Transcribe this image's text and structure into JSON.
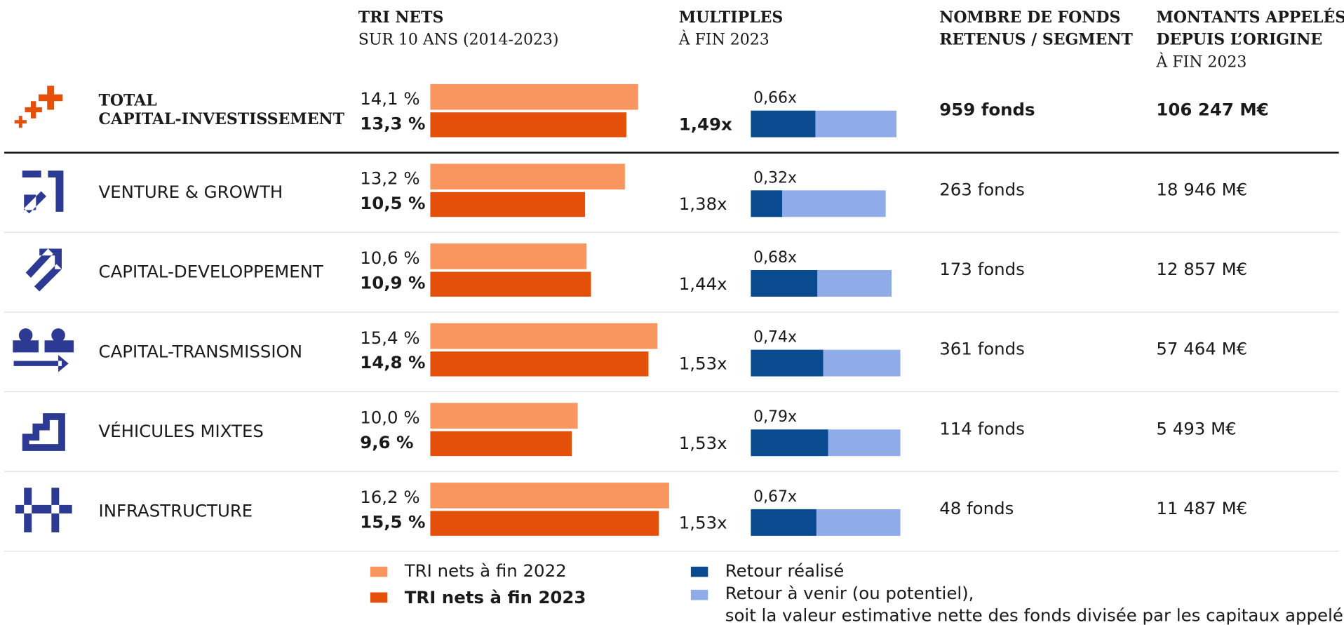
{
  "header": {
    "tri": {
      "title": "TRI NETS",
      "subtitle": "SUR 10 ANS (2014-2023)"
    },
    "multiples": {
      "title": "MULTIPLES",
      "subtitle": "À FIN 2023"
    },
    "funds": {
      "title_lines": [
        "NOMBRE DE FONDS",
        "RETENUS / SEGMENT"
      ]
    },
    "amounts": {
      "title_lines": [
        "MONTANTS APPELÉS",
        "DEPUIS L’ORIGINE"
      ],
      "subtitle": "À FIN 2023"
    }
  },
  "rows": [
    {
      "name_lines": [
        "TOTAL",
        "CAPITAL-INVESTISSEMENT"
      ],
      "tri_2022": {
        "value": 14.1,
        "label": "14,1 %"
      },
      "tri_2023": {
        "value": 13.3,
        "label": "13,3 %"
      },
      "multiple": {
        "value": 1.49,
        "label": "1,49x"
      },
      "realized": {
        "value": 0.66,
        "label": "0,66x"
      },
      "funds": "959 fonds",
      "amount": "106 247 M€"
    },
    {
      "name_lines": [
        "VENTURE & GROWTH"
      ],
      "tri_2022": {
        "value": 13.2,
        "label": "13,2 %"
      },
      "tri_2023": {
        "value": 10.5,
        "label": "10,5 %"
      },
      "multiple": {
        "value": 1.38,
        "label": "1,38x"
      },
      "realized": {
        "value": 0.32,
        "label": "0,32x"
      },
      "funds": "263 fonds",
      "amount": "18 946 M€"
    },
    {
      "name_lines": [
        "CAPITAL-DEVELOPPEMENT"
      ],
      "tri_2022": {
        "value": 10.6,
        "label": "10,6 %"
      },
      "tri_2023": {
        "value": 10.9,
        "label": "10,9 %"
      },
      "multiple": {
        "value": 1.44,
        "label": "1,44x"
      },
      "realized": {
        "value": 0.68,
        "label": "0,68x"
      },
      "funds": "173 fonds",
      "amount": "12 857 M€"
    },
    {
      "name_lines": [
        "CAPITAL-TRANSMISSION"
      ],
      "tri_2022": {
        "value": 15.4,
        "label": "15,4 %"
      },
      "tri_2023": {
        "value": 14.8,
        "label": "14,8 %"
      },
      "multiple": {
        "value": 1.53,
        "label": "1,53x"
      },
      "realized": {
        "value": 0.74,
        "label": "0,74x"
      },
      "funds": "361 fonds",
      "amount": "57 464 M€"
    },
    {
      "name_lines": [
        "VÉHICULES MIXTES"
      ],
      "tri_2022": {
        "value": 10.0,
        "label": "10,0 %"
      },
      "tri_2023": {
        "value": 9.6,
        "label": "9,6 %"
      },
      "multiple": {
        "value": 1.53,
        "label": "1,53x"
      },
      "realized": {
        "value": 0.79,
        "label": "0,79x"
      },
      "funds": "114 fonds",
      "amount": "5 493 M€"
    },
    {
      "name_lines": [
        "INFRASTRUCTURE"
      ],
      "tri_2022": {
        "value": 16.2,
        "label": "16,2 %"
      },
      "tri_2023": {
        "value": 15.5,
        "label": "15,5 %"
      },
      "multiple": {
        "value": 1.53,
        "label": "1,53x"
      },
      "realized": {
        "value": 0.67,
        "label": "0,67x"
      },
      "funds": "48 fonds",
      "amount": "11 487 M€"
    }
  ],
  "legend": {
    "tri_2022": {
      "label": "TRI nets à fin 2022",
      "color": "#f9955f"
    },
    "tri_2023": {
      "label": "TRI nets à fin 2023",
      "color": "#e4500a"
    },
    "realized": {
      "label": "Retour réalisé",
      "color": "#0a4a8f"
    },
    "potential": {
      "label_lines": [
        "Retour à venir (ou potentiel),",
        "soit la valeur estimative nette des fonds divisée par les capitaux appelés"
      ],
      "color": "#8fabe8"
    }
  }
}
